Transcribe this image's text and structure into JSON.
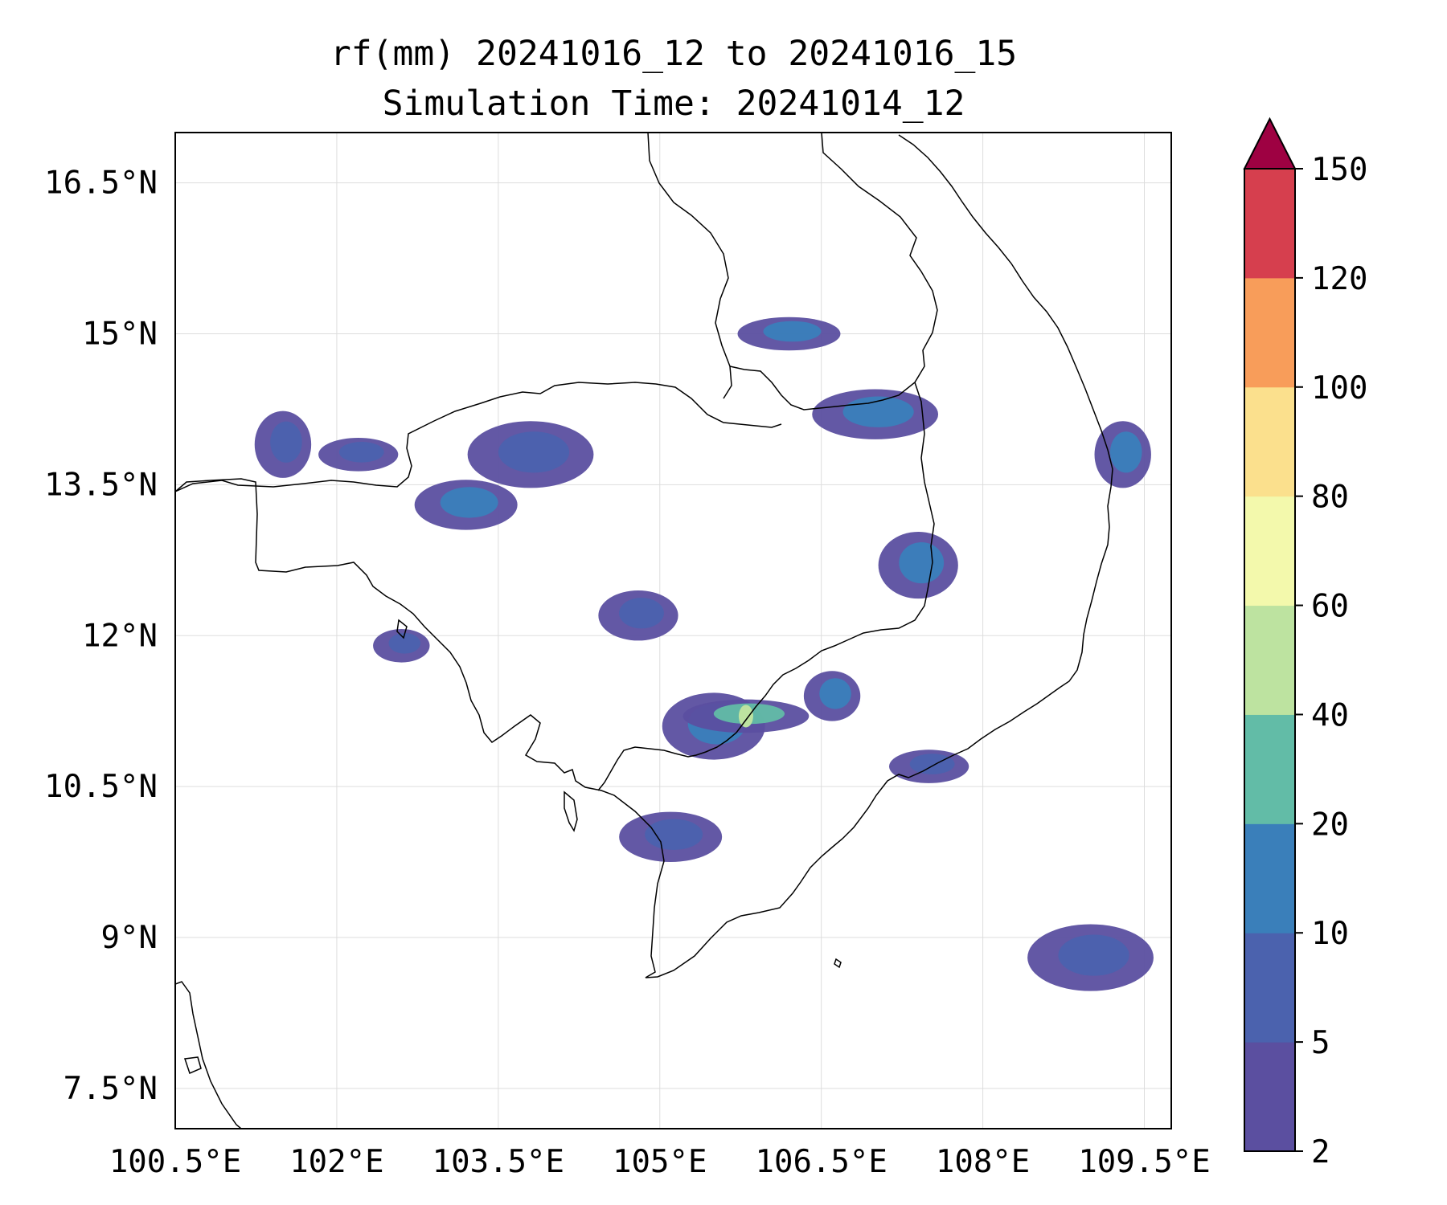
{
  "title": {
    "line1": "rf(mm) 20241016_12 to 20241016_15",
    "line2": "Simulation Time: 20241014_12"
  },
  "map": {
    "lon_range": [
      100.5,
      109.75
    ],
    "lat_range": [
      7.1,
      17.0
    ],
    "lon_ticks": [
      100.5,
      102,
      103.5,
      105,
      106.5,
      108,
      109.5
    ],
    "lon_tick_labels": [
      "100.5°E",
      "102°E",
      "103.5°E",
      "105°E",
      "106.5°E",
      "108°E",
      "109.5°E"
    ],
    "lat_ticks": [
      7.5,
      9,
      10.5,
      12,
      13.5,
      15,
      16.5
    ],
    "lat_tick_labels": [
      "7.5°N",
      "9°N",
      "10.5°N",
      "12°N",
      "13.5°N",
      "15°N",
      "16.5°N"
    ],
    "gridlines": true,
    "coastlines": true,
    "borders": true,
    "field": "rf(mm)"
  },
  "colorbar": {
    "levels": [
      2,
      5,
      10,
      20,
      40,
      60,
      80,
      100,
      120,
      150
    ],
    "labels": [
      "2",
      "5",
      "10",
      "20",
      "40",
      "60",
      "80",
      "100",
      "120",
      "150"
    ],
    "colors": [
      "#5b4fa0",
      "#4b62ae",
      "#3a7fba",
      "#62bca7",
      "#bde3a0",
      "#f3f9ac",
      "#fbe08d",
      "#f89d5a",
      "#d63f4e",
      "#9e0142"
    ],
    "extend": "max"
  },
  "rain_areas": [
    {
      "lon": 101.5,
      "lat": 13.9,
      "level": 5
    },
    {
      "lon": 102.2,
      "lat": 13.8,
      "level": 5
    },
    {
      "lon": 103.2,
      "lat": 13.3,
      "level": 10
    },
    {
      "lon": 103.8,
      "lat": 13.8,
      "level": 5
    },
    {
      "lon": 102.6,
      "lat": 11.9,
      "level": 5
    },
    {
      "lon": 104.8,
      "lat": 12.2,
      "level": 5
    },
    {
      "lon": 105.5,
      "lat": 11.1,
      "level": 10
    },
    {
      "lon": 105.8,
      "lat": 11.2,
      "level": 40
    },
    {
      "lon": 106.6,
      "lat": 11.4,
      "level": 10
    },
    {
      "lon": 107.4,
      "lat": 12.7,
      "level": 10
    },
    {
      "lon": 106.2,
      "lat": 15.0,
      "level": 10
    },
    {
      "lon": 107.0,
      "lat": 14.2,
      "level": 10
    },
    {
      "lon": 109.3,
      "lat": 13.8,
      "level": 10
    },
    {
      "lon": 107.5,
      "lat": 10.7,
      "level": 5
    },
    {
      "lon": 105.1,
      "lat": 10.0,
      "level": 5
    },
    {
      "lon": 109.0,
      "lat": 8.8,
      "level": 5
    }
  ]
}
